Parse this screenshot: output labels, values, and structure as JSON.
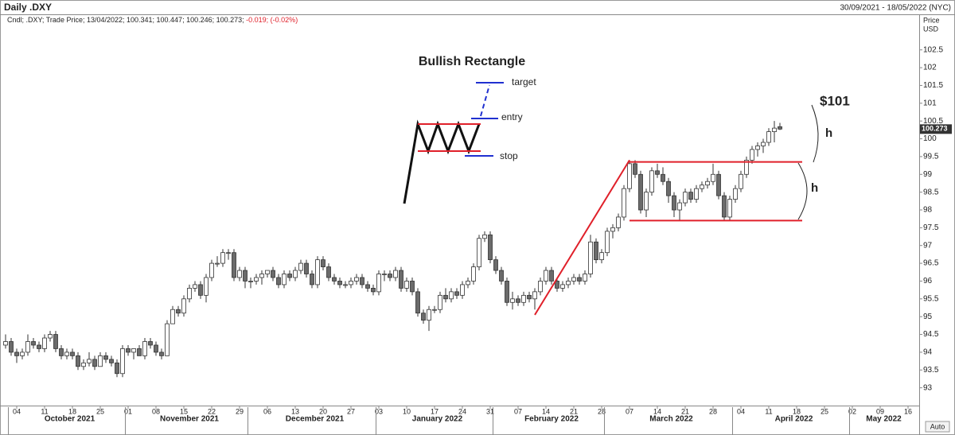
{
  "chart_data": {
    "type": "candlestick",
    "title": "Daily .DXY",
    "date_range": "30/09/2021 - 18/05/2022 (NYC)",
    "legend": {
      "info": "Cndl; .DXY; Trade Price; 13/04/2022; 100.341; 100.447; 100.246; 100.273;",
      "change": "-0.019; (-0.02%)",
      "change_color": "#e0202a"
    },
    "y_label": [
      "Price",
      "USD"
    ],
    "auto_label": "Auto",
    "grid": false,
    "up_color": "#ffffff",
    "down_color": "#6b6b6b",
    "x": [
      "2021-09-30",
      "2021-10-01",
      "2021-10-04",
      "2021-10-05",
      "2021-10-06",
      "2021-10-07",
      "2021-10-08",
      "2021-10-11",
      "2021-10-12",
      "2021-10-13",
      "2021-10-14",
      "2021-10-15",
      "2021-10-18",
      "2021-10-19",
      "2021-10-20",
      "2021-10-21",
      "2021-10-22",
      "2021-10-25",
      "2021-10-26",
      "2021-10-27",
      "2021-10-28",
      "2021-10-29",
      "2021-11-01",
      "2021-11-02",
      "2021-11-03",
      "2021-11-04",
      "2021-11-05",
      "2021-11-08",
      "2021-11-09",
      "2021-11-10",
      "2021-11-11",
      "2021-11-12",
      "2021-11-15",
      "2021-11-16",
      "2021-11-17",
      "2021-11-18",
      "2021-11-19",
      "2021-11-22",
      "2021-11-23",
      "2021-11-24",
      "2021-11-25",
      "2021-11-26",
      "2021-11-29",
      "2021-11-30",
      "2021-12-01",
      "2021-12-02",
      "2021-12-03",
      "2021-12-06",
      "2021-12-07",
      "2021-12-08",
      "2021-12-09",
      "2021-12-10",
      "2021-12-13",
      "2021-12-14",
      "2021-12-15",
      "2021-12-16",
      "2021-12-17",
      "2021-12-20",
      "2021-12-21",
      "2021-12-22",
      "2021-12-23",
      "2021-12-24",
      "2021-12-27",
      "2021-12-28",
      "2021-12-29",
      "2021-12-30",
      "2021-12-31",
      "2022-01-03",
      "2022-01-04",
      "2022-01-05",
      "2022-01-06",
      "2022-01-07",
      "2022-01-10",
      "2022-01-11",
      "2022-01-12",
      "2022-01-13",
      "2022-01-14",
      "2022-01-17",
      "2022-01-18",
      "2022-01-19",
      "2022-01-20",
      "2022-01-21",
      "2022-01-24",
      "2022-01-25",
      "2022-01-26",
      "2022-01-27",
      "2022-01-28",
      "2022-01-31",
      "2022-02-01",
      "2022-02-02",
      "2022-02-03",
      "2022-02-04",
      "2022-02-07",
      "2022-02-08",
      "2022-02-09",
      "2022-02-10",
      "2022-02-11",
      "2022-02-14",
      "2022-02-15",
      "2022-02-16",
      "2022-02-17",
      "2022-02-18",
      "2022-02-21",
      "2022-02-22",
      "2022-02-23",
      "2022-02-24",
      "2022-02-25",
      "2022-02-28",
      "2022-03-01",
      "2022-03-02",
      "2022-03-03",
      "2022-03-04",
      "2022-03-07",
      "2022-03-08",
      "2022-03-09",
      "2022-03-10",
      "2022-03-11",
      "2022-03-14",
      "2022-03-15",
      "2022-03-16",
      "2022-03-17",
      "2022-03-18",
      "2022-03-21",
      "2022-03-22",
      "2022-03-23",
      "2022-03-24",
      "2022-03-25",
      "2022-03-28",
      "2022-03-29",
      "2022-03-30",
      "2022-03-31",
      "2022-04-01",
      "2022-04-04",
      "2022-04-05",
      "2022-04-06",
      "2022-04-07",
      "2022-04-08",
      "2022-04-11",
      "2022-04-12",
      "2022-04-13"
    ],
    "open": [
      94.2,
      94.3,
      94.0,
      93.9,
      94.0,
      94.3,
      94.2,
      94.1,
      94.4,
      94.5,
      94.1,
      93.9,
      94.0,
      93.9,
      93.6,
      93.7,
      93.8,
      93.6,
      93.9,
      93.8,
      93.7,
      93.4,
      94.1,
      94.0,
      94.1,
      93.9,
      94.3,
      94.2,
      94.0,
      93.9,
      94.8,
      95.2,
      95.1,
      95.5,
      95.8,
      95.9,
      95.6,
      96.1,
      96.5,
      96.5,
      96.8,
      96.8,
      96.1,
      96.3,
      96.0,
      96.0,
      96.1,
      96.2,
      96.3,
      96.1,
      95.9,
      96.2,
      96.1,
      96.3,
      96.5,
      96.2,
      95.9,
      96.6,
      96.4,
      96.1,
      96.0,
      95.9,
      95.9,
      96.0,
      96.1,
      95.9,
      95.8,
      95.7,
      96.2,
      96.2,
      96.1,
      96.3,
      95.8,
      96.0,
      95.7,
      95.1,
      94.9,
      95.2,
      95.2,
      95.6,
      95.5,
      95.7,
      95.6,
      95.9,
      96.0,
      96.4,
      97.2,
      97.3,
      96.6,
      96.3,
      96.0,
      95.4,
      95.5,
      95.4,
      95.6,
      95.5,
      95.7,
      96.0,
      96.3,
      96.0,
      95.8,
      95.9,
      96.0,
      96.1,
      96.0,
      96.2,
      97.1,
      96.6,
      96.8,
      97.4,
      97.5,
      97.8,
      98.6,
      99.3,
      99.0,
      98.0,
      98.5,
      99.1,
      99.0,
      98.8,
      98.4,
      98.0,
      98.2,
      98.5,
      98.3,
      98.6,
      98.7,
      98.8,
      99.0,
      98.4,
      97.8,
      98.3,
      98.6,
      99.0,
      99.4,
      99.7,
      99.8,
      99.9,
      100.2,
      100.341
    ],
    "high": [
      94.5,
      94.4,
      94.1,
      94.1,
      94.5,
      94.4,
      94.3,
      94.5,
      94.6,
      94.6,
      94.2,
      94.1,
      94.1,
      94.0,
      93.8,
      94.0,
      93.9,
      94.0,
      94.0,
      93.9,
      93.8,
      94.2,
      94.2,
      94.1,
      94.2,
      94.4,
      94.4,
      94.3,
      94.1,
      94.9,
      95.3,
      95.3,
      95.6,
      95.9,
      96.0,
      96.0,
      96.2,
      96.6,
      96.7,
      96.9,
      96.9,
      96.9,
      96.4,
      96.4,
      96.1,
      96.2,
      96.3,
      96.3,
      96.4,
      96.2,
      96.3,
      96.3,
      96.4,
      96.6,
      96.6,
      96.3,
      96.7,
      96.7,
      96.5,
      96.2,
      96.1,
      96.0,
      96.1,
      96.2,
      96.2,
      96.0,
      95.9,
      96.3,
      96.3,
      96.3,
      96.4,
      96.4,
      96.1,
      96.1,
      95.8,
      95.2,
      95.3,
      95.3,
      95.7,
      95.8,
      95.8,
      95.8,
      96.0,
      96.1,
      96.5,
      97.3,
      97.4,
      97.4,
      96.7,
      96.4,
      96.1,
      95.7,
      95.6,
      95.7,
      95.7,
      95.8,
      96.1,
      96.4,
      96.4,
      96.1,
      96.0,
      96.1,
      96.2,
      96.2,
      96.3,
      97.3,
      97.2,
      96.9,
      97.5,
      97.6,
      97.9,
      98.7,
      99.4,
      99.4,
      99.1,
      98.6,
      99.2,
      99.3,
      99.2,
      98.9,
      98.5,
      98.3,
      98.6,
      98.6,
      98.7,
      98.8,
      98.9,
      99.3,
      99.1,
      98.5,
      98.4,
      98.7,
      99.1,
      99.5,
      99.8,
      99.9,
      100.0,
      100.3,
      100.5,
      100.447
    ],
    "low": [
      94.1,
      93.9,
      93.7,
      93.8,
      93.9,
      94.1,
      94.0,
      94.0,
      94.3,
      94.0,
      93.8,
      93.8,
      93.8,
      93.5,
      93.5,
      93.6,
      93.5,
      93.6,
      93.7,
      93.6,
      93.3,
      93.3,
      93.9,
      93.8,
      93.9,
      93.8,
      94.1,
      93.9,
      93.8,
      93.9,
      94.8,
      95.0,
      95.0,
      95.4,
      95.7,
      95.5,
      95.4,
      96.0,
      96.4,
      96.4,
      96.6,
      96.0,
      96.0,
      95.8,
      95.8,
      95.9,
      95.9,
      96.1,
      96.0,
      95.8,
      95.8,
      96.0,
      96.0,
      96.2,
      96.1,
      95.8,
      95.8,
      96.3,
      96.0,
      95.9,
      95.8,
      95.8,
      95.8,
      95.9,
      95.8,
      95.7,
      95.6,
      95.6,
      96.0,
      96.0,
      96.0,
      95.7,
      95.7,
      95.6,
      95.0,
      94.8,
      94.6,
      95.1,
      95.1,
      95.4,
      95.4,
      95.5,
      95.5,
      95.8,
      95.9,
      96.3,
      97.1,
      96.5,
      96.2,
      95.9,
      95.3,
      95.2,
      95.3,
      95.3,
      95.4,
      95.2,
      95.6,
      95.9,
      95.9,
      95.7,
      95.7,
      95.8,
      95.9,
      95.9,
      95.9,
      96.1,
      96.5,
      96.5,
      96.7,
      97.2,
      97.4,
      97.7,
      98.5,
      98.9,
      97.9,
      97.8,
      98.4,
      98.9,
      98.7,
      98.2,
      97.8,
      97.7,
      98.1,
      98.2,
      98.2,
      98.5,
      98.6,
      98.7,
      98.3,
      97.7,
      97.7,
      98.2,
      98.5,
      98.9,
      99.3,
      99.5,
      99.6,
      99.8,
      99.9,
      100.246
    ],
    "close": [
      94.3,
      94.0,
      93.9,
      94.0,
      94.3,
      94.2,
      94.1,
      94.4,
      94.5,
      94.1,
      93.9,
      94.0,
      93.9,
      93.6,
      93.7,
      93.8,
      93.6,
      93.9,
      93.8,
      93.7,
      93.4,
      94.1,
      94.0,
      94.1,
      93.9,
      94.3,
      94.2,
      94.0,
      93.9,
      94.8,
      95.2,
      95.1,
      95.5,
      95.8,
      95.9,
      95.6,
      96.1,
      96.5,
      96.5,
      96.8,
      96.8,
      96.1,
      96.3,
      96.0,
      96.0,
      96.1,
      96.2,
      96.3,
      96.1,
      95.9,
      96.2,
      96.1,
      96.3,
      96.5,
      96.2,
      95.9,
      96.6,
      96.4,
      96.1,
      96.0,
      95.9,
      95.9,
      96.0,
      96.1,
      95.9,
      95.8,
      95.7,
      96.2,
      96.2,
      96.1,
      96.3,
      95.8,
      96.0,
      95.7,
      95.1,
      94.9,
      95.2,
      95.2,
      95.6,
      95.5,
      95.7,
      95.6,
      95.9,
      96.0,
      96.4,
      97.2,
      97.3,
      96.6,
      96.3,
      96.0,
      95.4,
      95.5,
      95.4,
      95.6,
      95.5,
      95.7,
      96.0,
      96.3,
      96.0,
      95.8,
      95.9,
      96.0,
      96.1,
      96.0,
      96.2,
      97.1,
      96.6,
      96.8,
      97.4,
      97.5,
      97.8,
      98.6,
      99.3,
      99.0,
      98.0,
      98.5,
      99.1,
      99.0,
      98.8,
      98.4,
      98.0,
      98.2,
      98.5,
      98.3,
      98.6,
      98.7,
      98.8,
      99.0,
      98.4,
      97.8,
      98.3,
      98.6,
      99.0,
      99.4,
      99.7,
      99.8,
      99.9,
      100.2,
      100.3,
      100.273
    ],
    "xlim": [
      "2021-09-30",
      "2022-05-18"
    ],
    "xticks": [
      {
        "value": "2021-10-04",
        "label": "04"
      },
      {
        "value": "2021-10-11",
        "label": "11"
      },
      {
        "value": "2021-10-18",
        "label": "18"
      },
      {
        "value": "2021-10-25",
        "label": "25"
      },
      {
        "value": "2021-11-01",
        "label": "01"
      },
      {
        "value": "2021-11-08",
        "label": "08"
      },
      {
        "value": "2021-11-15",
        "label": "15"
      },
      {
        "value": "2021-11-22",
        "label": "22"
      },
      {
        "value": "2021-11-29",
        "label": "29"
      },
      {
        "value": "2021-12-06",
        "label": "06"
      },
      {
        "value": "2021-12-13",
        "label": "13"
      },
      {
        "value": "2021-12-20",
        "label": "20"
      },
      {
        "value": "2021-12-27",
        "label": "27"
      },
      {
        "value": "2022-01-03",
        "label": "03"
      },
      {
        "value": "2022-01-10",
        "label": "10"
      },
      {
        "value": "2022-01-17",
        "label": "17"
      },
      {
        "value": "2022-01-24",
        "label": "24"
      },
      {
        "value": "2022-01-31",
        "label": "31"
      },
      {
        "value": "2022-02-07",
        "label": "07"
      },
      {
        "value": "2022-02-14",
        "label": "14"
      },
      {
        "value": "2022-02-21",
        "label": "21"
      },
      {
        "value": "2022-02-28",
        "label": "28"
      },
      {
        "value": "2022-03-07",
        "label": "07"
      },
      {
        "value": "2022-03-14",
        "label": "14"
      },
      {
        "value": "2022-03-21",
        "label": "21"
      },
      {
        "value": "2022-03-28",
        "label": "28"
      },
      {
        "value": "2022-04-04",
        "label": "04"
      },
      {
        "value": "2022-04-11",
        "label": "11"
      },
      {
        "value": "2022-04-18",
        "label": "18"
      },
      {
        "value": "2022-04-25",
        "label": "25"
      },
      {
        "value": "2022-05-02",
        "label": "02"
      },
      {
        "value": "2022-05-09",
        "label": "09"
      },
      {
        "value": "2022-05-16",
        "label": "16"
      }
    ],
    "months": [
      {
        "value": "2021-10-01",
        "label": "October 2021"
      },
      {
        "value": "2021-11-01",
        "label": "November 2021"
      },
      {
        "value": "2021-12-01",
        "label": "December 2021"
      },
      {
        "value": "2022-01-01",
        "label": "January 2022"
      },
      {
        "value": "2022-02-01",
        "label": "February 2022"
      },
      {
        "value": "2022-03-01",
        "label": "March 2022"
      },
      {
        "value": "2022-04-01",
        "label": "April 2022"
      },
      {
        "value": "2022-05-01",
        "label": "May 2022"
      }
    ],
    "ylim": [
      92.5,
      103.5
    ],
    "yticks": [
      93,
      93.5,
      94,
      94.5,
      95,
      95.5,
      96,
      96.5,
      97,
      97.5,
      98,
      98.5,
      99,
      99.5,
      100,
      100.5,
      101,
      101.5,
      102,
      102.5
    ],
    "annotation_lines": [
      {
        "color": "#e0202a",
        "x": [
          "2022-02-10",
          "2022-03-07"
        ],
        "y": [
          95.05,
          99.4
        ]
      },
      {
        "color": "#e0202a",
        "x": [
          "2022-03-07",
          "2022-04-19"
        ],
        "y": [
          99.35,
          99.35
        ]
      },
      {
        "color": "#e0202a",
        "x": [
          "2022-03-07",
          "2022-04-19"
        ],
        "y": [
          97.7,
          97.7
        ]
      }
    ],
    "annotations": {
      "inset_title": "Bullish Rectangle",
      "target": "target",
      "entry": "entry",
      "stop": "stop",
      "price_target": "$101",
      "height_upper": "h",
      "height_lower": "h"
    }
  }
}
